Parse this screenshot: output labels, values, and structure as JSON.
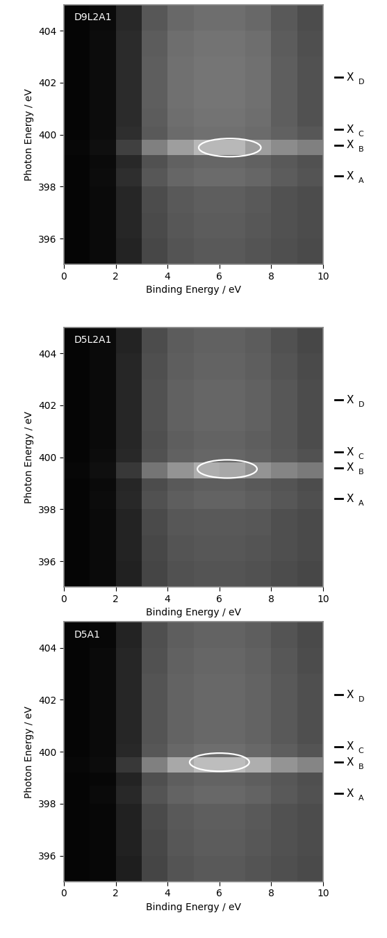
{
  "chart_data": [
    {
      "type": "heatmap",
      "title": "D9L2A1",
      "x_label": "Binding Energy / eV",
      "y_label": "Photon Energy / eV",
      "xlim": [
        0,
        10
      ],
      "ylim": [
        395,
        405
      ],
      "xticks": [
        0,
        2,
        4,
        6,
        8,
        10
      ],
      "yticks": [
        396,
        398,
        400,
        402,
        404
      ],
      "color": "gray",
      "value_range": [
        0,
        1
      ],
      "x_edges": [
        0,
        1,
        2,
        3,
        4,
        5,
        6,
        7,
        8,
        9,
        10
      ],
      "y_edges": [
        395,
        396,
        397,
        398,
        398.7,
        399.2,
        399.8,
        400.3,
        401,
        402,
        403,
        404,
        405
      ],
      "cells": [
        [
          0.02,
          0.04,
          0.14,
          0.28,
          0.33,
          0.35,
          0.35,
          0.33,
          0.31,
          0.29
        ],
        [
          0.02,
          0.04,
          0.15,
          0.29,
          0.34,
          0.36,
          0.36,
          0.34,
          0.32,
          0.3
        ],
        [
          0.02,
          0.04,
          0.15,
          0.3,
          0.35,
          0.37,
          0.37,
          0.35,
          0.32,
          0.3
        ],
        [
          0.02,
          0.05,
          0.18,
          0.34,
          0.4,
          0.42,
          0.42,
          0.4,
          0.36,
          0.33
        ],
        [
          0.02,
          0.04,
          0.16,
          0.32,
          0.38,
          0.4,
          0.4,
          0.38,
          0.35,
          0.32
        ],
        [
          0.03,
          0.06,
          0.25,
          0.5,
          0.62,
          0.72,
          0.72,
          0.62,
          0.55,
          0.5
        ],
        [
          0.02,
          0.05,
          0.18,
          0.35,
          0.42,
          0.44,
          0.44,
          0.42,
          0.38,
          0.34
        ],
        [
          0.02,
          0.05,
          0.17,
          0.36,
          0.43,
          0.45,
          0.45,
          0.43,
          0.37,
          0.32
        ],
        [
          0.02,
          0.05,
          0.17,
          0.37,
          0.44,
          0.46,
          0.46,
          0.44,
          0.37,
          0.32
        ],
        [
          0.02,
          0.05,
          0.17,
          0.37,
          0.44,
          0.46,
          0.46,
          0.44,
          0.37,
          0.32
        ],
        [
          0.02,
          0.05,
          0.17,
          0.36,
          0.43,
          0.45,
          0.45,
          0.43,
          0.36,
          0.31
        ],
        [
          0.02,
          0.04,
          0.16,
          0.34,
          0.41,
          0.43,
          0.43,
          0.41,
          0.35,
          0.3
        ]
      ],
      "ellipse": {
        "center": [
          6.4,
          399.5
        ],
        "width": 2.4,
        "height": 0.7
      },
      "markers": [
        {
          "name": "X",
          "sub": "D",
          "value": 402.2
        },
        {
          "name": "X",
          "sub": "C",
          "value": 400.2
        },
        {
          "name": "X",
          "sub": "B",
          "value": 399.6
        },
        {
          "name": "X",
          "sub": "A",
          "value": 398.4
        }
      ]
    },
    {
      "type": "heatmap",
      "title": "D5L2A1",
      "x_label": "Binding Energy / eV",
      "y_label": "Photon Energy / eV",
      "xlim": [
        0,
        10
      ],
      "ylim": [
        395,
        405
      ],
      "xticks": [
        0,
        2,
        4,
        6,
        8,
        10
      ],
      "yticks": [
        396,
        398,
        400,
        402,
        404
      ],
      "color": "gray",
      "value_range": [
        0,
        1
      ],
      "x_edges": [
        0,
        1,
        2,
        3,
        4,
        5,
        6,
        7,
        8,
        9,
        10
      ],
      "y_edges": [
        395,
        396,
        397,
        398,
        398.7,
        399.2,
        399.8,
        400.3,
        401,
        402,
        403,
        404,
        405
      ],
      "cells": [
        [
          0.02,
          0.04,
          0.13,
          0.27,
          0.32,
          0.33,
          0.33,
          0.32,
          0.3,
          0.28
        ],
        [
          0.02,
          0.04,
          0.14,
          0.28,
          0.33,
          0.34,
          0.34,
          0.33,
          0.31,
          0.29
        ],
        [
          0.02,
          0.04,
          0.14,
          0.29,
          0.34,
          0.35,
          0.35,
          0.34,
          0.31,
          0.29
        ],
        [
          0.02,
          0.05,
          0.16,
          0.32,
          0.37,
          0.39,
          0.39,
          0.37,
          0.34,
          0.31
        ],
        [
          0.02,
          0.04,
          0.15,
          0.3,
          0.35,
          0.37,
          0.37,
          0.35,
          0.33,
          0.3
        ],
        [
          0.03,
          0.06,
          0.22,
          0.46,
          0.58,
          0.68,
          0.66,
          0.58,
          0.52,
          0.48
        ],
        [
          0.02,
          0.05,
          0.16,
          0.32,
          0.38,
          0.4,
          0.4,
          0.38,
          0.35,
          0.32
        ],
        [
          0.02,
          0.04,
          0.15,
          0.31,
          0.37,
          0.39,
          0.39,
          0.37,
          0.34,
          0.3
        ],
        [
          0.02,
          0.04,
          0.15,
          0.32,
          0.38,
          0.4,
          0.4,
          0.38,
          0.34,
          0.3
        ],
        [
          0.02,
          0.04,
          0.15,
          0.32,
          0.38,
          0.4,
          0.4,
          0.38,
          0.34,
          0.3
        ],
        [
          0.02,
          0.04,
          0.15,
          0.31,
          0.37,
          0.39,
          0.39,
          0.37,
          0.33,
          0.29
        ],
        [
          0.02,
          0.04,
          0.14,
          0.3,
          0.36,
          0.38,
          0.38,
          0.36,
          0.32,
          0.28
        ]
      ],
      "ellipse": {
        "center": [
          6.3,
          399.55
        ],
        "width": 2.3,
        "height": 0.7
      },
      "markers": [
        {
          "name": "X",
          "sub": "D",
          "value": 402.2
        },
        {
          "name": "X",
          "sub": "C",
          "value": 400.2
        },
        {
          "name": "X",
          "sub": "B",
          "value": 399.6
        },
        {
          "name": "X",
          "sub": "A",
          "value": 398.4
        }
      ]
    },
    {
      "type": "heatmap",
      "title": "D5A1",
      "x_label": "Binding Energy / eV",
      "y_label": "Photon Energy / eV",
      "xlim": [
        0,
        10
      ],
      "ylim": [
        395,
        405
      ],
      "xticks": [
        0,
        2,
        4,
        6,
        8,
        10
      ],
      "yticks": [
        396,
        398,
        400,
        402,
        404
      ],
      "color": "gray",
      "value_range": [
        0,
        1
      ],
      "x_edges": [
        0,
        1,
        2,
        3,
        4,
        5,
        6,
        7,
        8,
        9,
        10
      ],
      "y_edges": [
        395,
        396,
        397,
        398,
        398.7,
        399.2,
        399.8,
        400.3,
        401,
        402,
        403,
        404,
        405
      ],
      "cells": [
        [
          0.02,
          0.03,
          0.12,
          0.27,
          0.33,
          0.35,
          0.35,
          0.33,
          0.31,
          0.29
        ],
        [
          0.02,
          0.03,
          0.13,
          0.28,
          0.34,
          0.36,
          0.36,
          0.34,
          0.32,
          0.3
        ],
        [
          0.02,
          0.03,
          0.13,
          0.29,
          0.35,
          0.37,
          0.37,
          0.35,
          0.32,
          0.3
        ],
        [
          0.02,
          0.04,
          0.16,
          0.33,
          0.39,
          0.41,
          0.41,
          0.39,
          0.35,
          0.32
        ],
        [
          0.02,
          0.03,
          0.14,
          0.31,
          0.37,
          0.39,
          0.39,
          0.37,
          0.34,
          0.31
        ],
        [
          0.03,
          0.05,
          0.22,
          0.5,
          0.66,
          0.74,
          0.74,
          0.68,
          0.58,
          0.52
        ],
        [
          0.02,
          0.04,
          0.16,
          0.34,
          0.41,
          0.43,
          0.43,
          0.41,
          0.37,
          0.33
        ],
        [
          0.02,
          0.04,
          0.15,
          0.33,
          0.39,
          0.41,
          0.41,
          0.39,
          0.35,
          0.31
        ],
        [
          0.02,
          0.04,
          0.15,
          0.33,
          0.39,
          0.41,
          0.41,
          0.39,
          0.35,
          0.31
        ],
        [
          0.02,
          0.04,
          0.15,
          0.33,
          0.39,
          0.41,
          0.41,
          0.39,
          0.35,
          0.31
        ],
        [
          0.02,
          0.04,
          0.15,
          0.32,
          0.38,
          0.4,
          0.4,
          0.38,
          0.34,
          0.3
        ],
        [
          0.02,
          0.03,
          0.14,
          0.31,
          0.37,
          0.39,
          0.39,
          0.37,
          0.33,
          0.29
        ]
      ],
      "ellipse": {
        "center": [
          6.0,
          399.6
        ],
        "width": 2.3,
        "height": 0.7
      },
      "markers": [
        {
          "name": "X",
          "sub": "D",
          "value": 402.2
        },
        {
          "name": "X",
          "sub": "C",
          "value": 400.2
        },
        {
          "name": "X",
          "sub": "B",
          "value": 399.6
        },
        {
          "name": "X",
          "sub": "A",
          "value": 398.4
        }
      ]
    }
  ]
}
